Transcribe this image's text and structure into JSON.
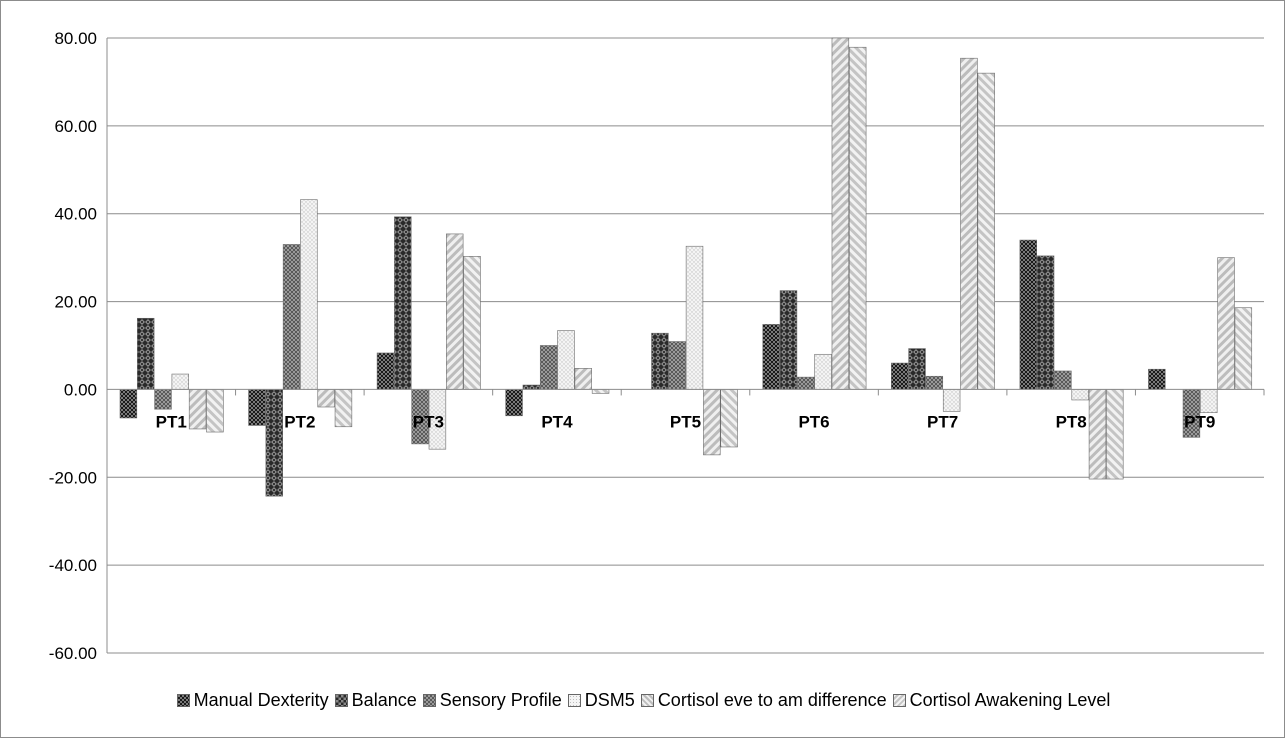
{
  "chart_data": {
    "type": "bar",
    "title": "",
    "xlabel": "",
    "ylabel": "",
    "ylim": [
      -60,
      80
    ],
    "yticks": [
      "80.00",
      "60.00",
      "40.00",
      "20.00",
      "0.00",
      "-20.00",
      "-40.00",
      "-60.00"
    ],
    "grid": true,
    "legend_position": "bottom",
    "categories": [
      "PT1",
      "PT2",
      "PT3",
      "PT4",
      "PT5",
      "PT6",
      "PT7",
      "PT8",
      "PT9"
    ],
    "series": [
      {
        "name": "Manual Dexterity",
        "pattern": "dark-check",
        "values": [
          -6.5,
          -8.2,
          8.3,
          -6.0,
          0,
          14.8,
          6.0,
          34.0,
          4.6
        ]
      },
      {
        "name": "Balance",
        "pattern": "dark-diamond",
        "values": [
          16.2,
          -24.3,
          39.3,
          1.0,
          12.8,
          22.5,
          9.3,
          30.4,
          0
        ]
      },
      {
        "name": "Sensory Profile",
        "pattern": "mid-grid",
        "values": [
          -4.5,
          33.0,
          -12.4,
          10.0,
          10.9,
          2.8,
          3.0,
          4.2,
          -10.9
        ]
      },
      {
        "name": "DSM5",
        "pattern": "light-dots",
        "values": [
          3.5,
          43.2,
          -13.6,
          13.4,
          32.6,
          8.0,
          -5.0,
          -2.4,
          -5.3
        ]
      },
      {
        "name": "Cortisol eve to am difference",
        "pattern": "back-stripe",
        "values": [
          -9.0,
          -4.0,
          35.4,
          4.8,
          -14.9,
          80.0,
          75.4,
          -20.4,
          30.0
        ]
      },
      {
        "name": "Cortisol Awakening Level",
        "pattern": "fwd-stripe",
        "values": [
          -9.7,
          -8.5,
          30.3,
          -0.9,
          -13.1,
          77.9,
          72.0,
          -20.4,
          18.6
        ]
      }
    ]
  }
}
